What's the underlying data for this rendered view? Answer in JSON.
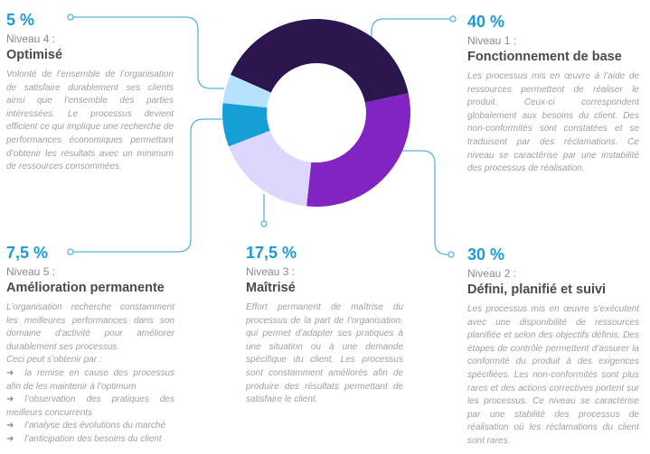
{
  "chart_data": {
    "type": "pie",
    "donut": true,
    "title": "",
    "slices": [
      {
        "label": "Niveau 1 : Fonctionnement de base",
        "value": 40,
        "color": "#2c1650"
      },
      {
        "label": "Niveau 2 : Défini, planifié et suivi",
        "value": 30,
        "color": "#8224c2"
      },
      {
        "label": "Niveau 3 : Maîtrisé",
        "value": 17.5,
        "color": "#ddd7fd"
      },
      {
        "label": "Niveau 5 : Amélioration permanente",
        "value": 7.5,
        "color": "#159fd6"
      },
      {
        "label": "Niveau 4 : Optimisé",
        "value": 5,
        "color": "#b5e3ff"
      }
    ],
    "connector_color": "#5ab4e0"
  },
  "levels": {
    "n4": {
      "percent": "5 %",
      "niveau": "Niveau 4 :",
      "title": "Optimisé",
      "body": "Volonté de l’ensemble de l’organisation de satisfaire durablement ses clients ainsi que l’ensemble des parties intéressées. Le processus devient efficient ce qui implique une recherche de performances économiques permettant d’obtenir les résultats avec un minimum de ressources consommées."
    },
    "n1": {
      "percent": "40 %",
      "niveau": "Niveau 1 :",
      "title": "Fonctionnement de base",
      "body": "Les processus mis en œuvre à l’aide de ressources permettent de réaliser le produit. Ceux-ci correspondent globalement aux besoins du client. Des non-conformités sont constatées et se traduisent par des réclamations. Ce niveau se caractérise par une instabilité des processus de réalisation."
    },
    "n5": {
      "percent": "7,5 %",
      "niveau": "Niveau 5 :",
      "title": "Amélioration permanente",
      "body": "L’organisation recherche constamment les meilleures performances dans son domaine d’activité pour améliorer durablement ses processus.",
      "intro": "Ceci peut s’obtenir par :",
      "bullets": [
        "la remise en cause des processus afin de les maintenir à l’optimum",
        "l’observation des pratiques des meilleurs concurrents",
        "l’analyse des évolutions du marché",
        "l’anticipation des besoins du client"
      ],
      "bullet_glyph": "➜"
    },
    "n3": {
      "percent": "17,5 %",
      "niveau": "Niveau 3 :",
      "title": "Maîtrisé",
      "body": "Effort permanent de maîtrise du processus de la part de l’organisation, qui permet d’adapter ses pratiques à une situation ou à une demande spécifique du client. Les processus sont constamment améliorés afin de produire des résultats permettant de satisfaire le client."
    },
    "n2": {
      "percent": "30 %",
      "niveau": "Niveau 2 :",
      "title": "Défini, planifié et suivi",
      "body": "Les processus mis en œuvre s’exécutent avec une disponibilité de ressources planifiée et selon des objectifs définis. Des étapes de contrôle permettent d’assurer la conformité du produit à des exigences spécifiées. Les non-conformités sont plus rares et des actions correctives portent sur les processus. Ce niveau se caractérise par une stabilité des processus de réalisation où les réclamations du client sont rares."
    }
  }
}
